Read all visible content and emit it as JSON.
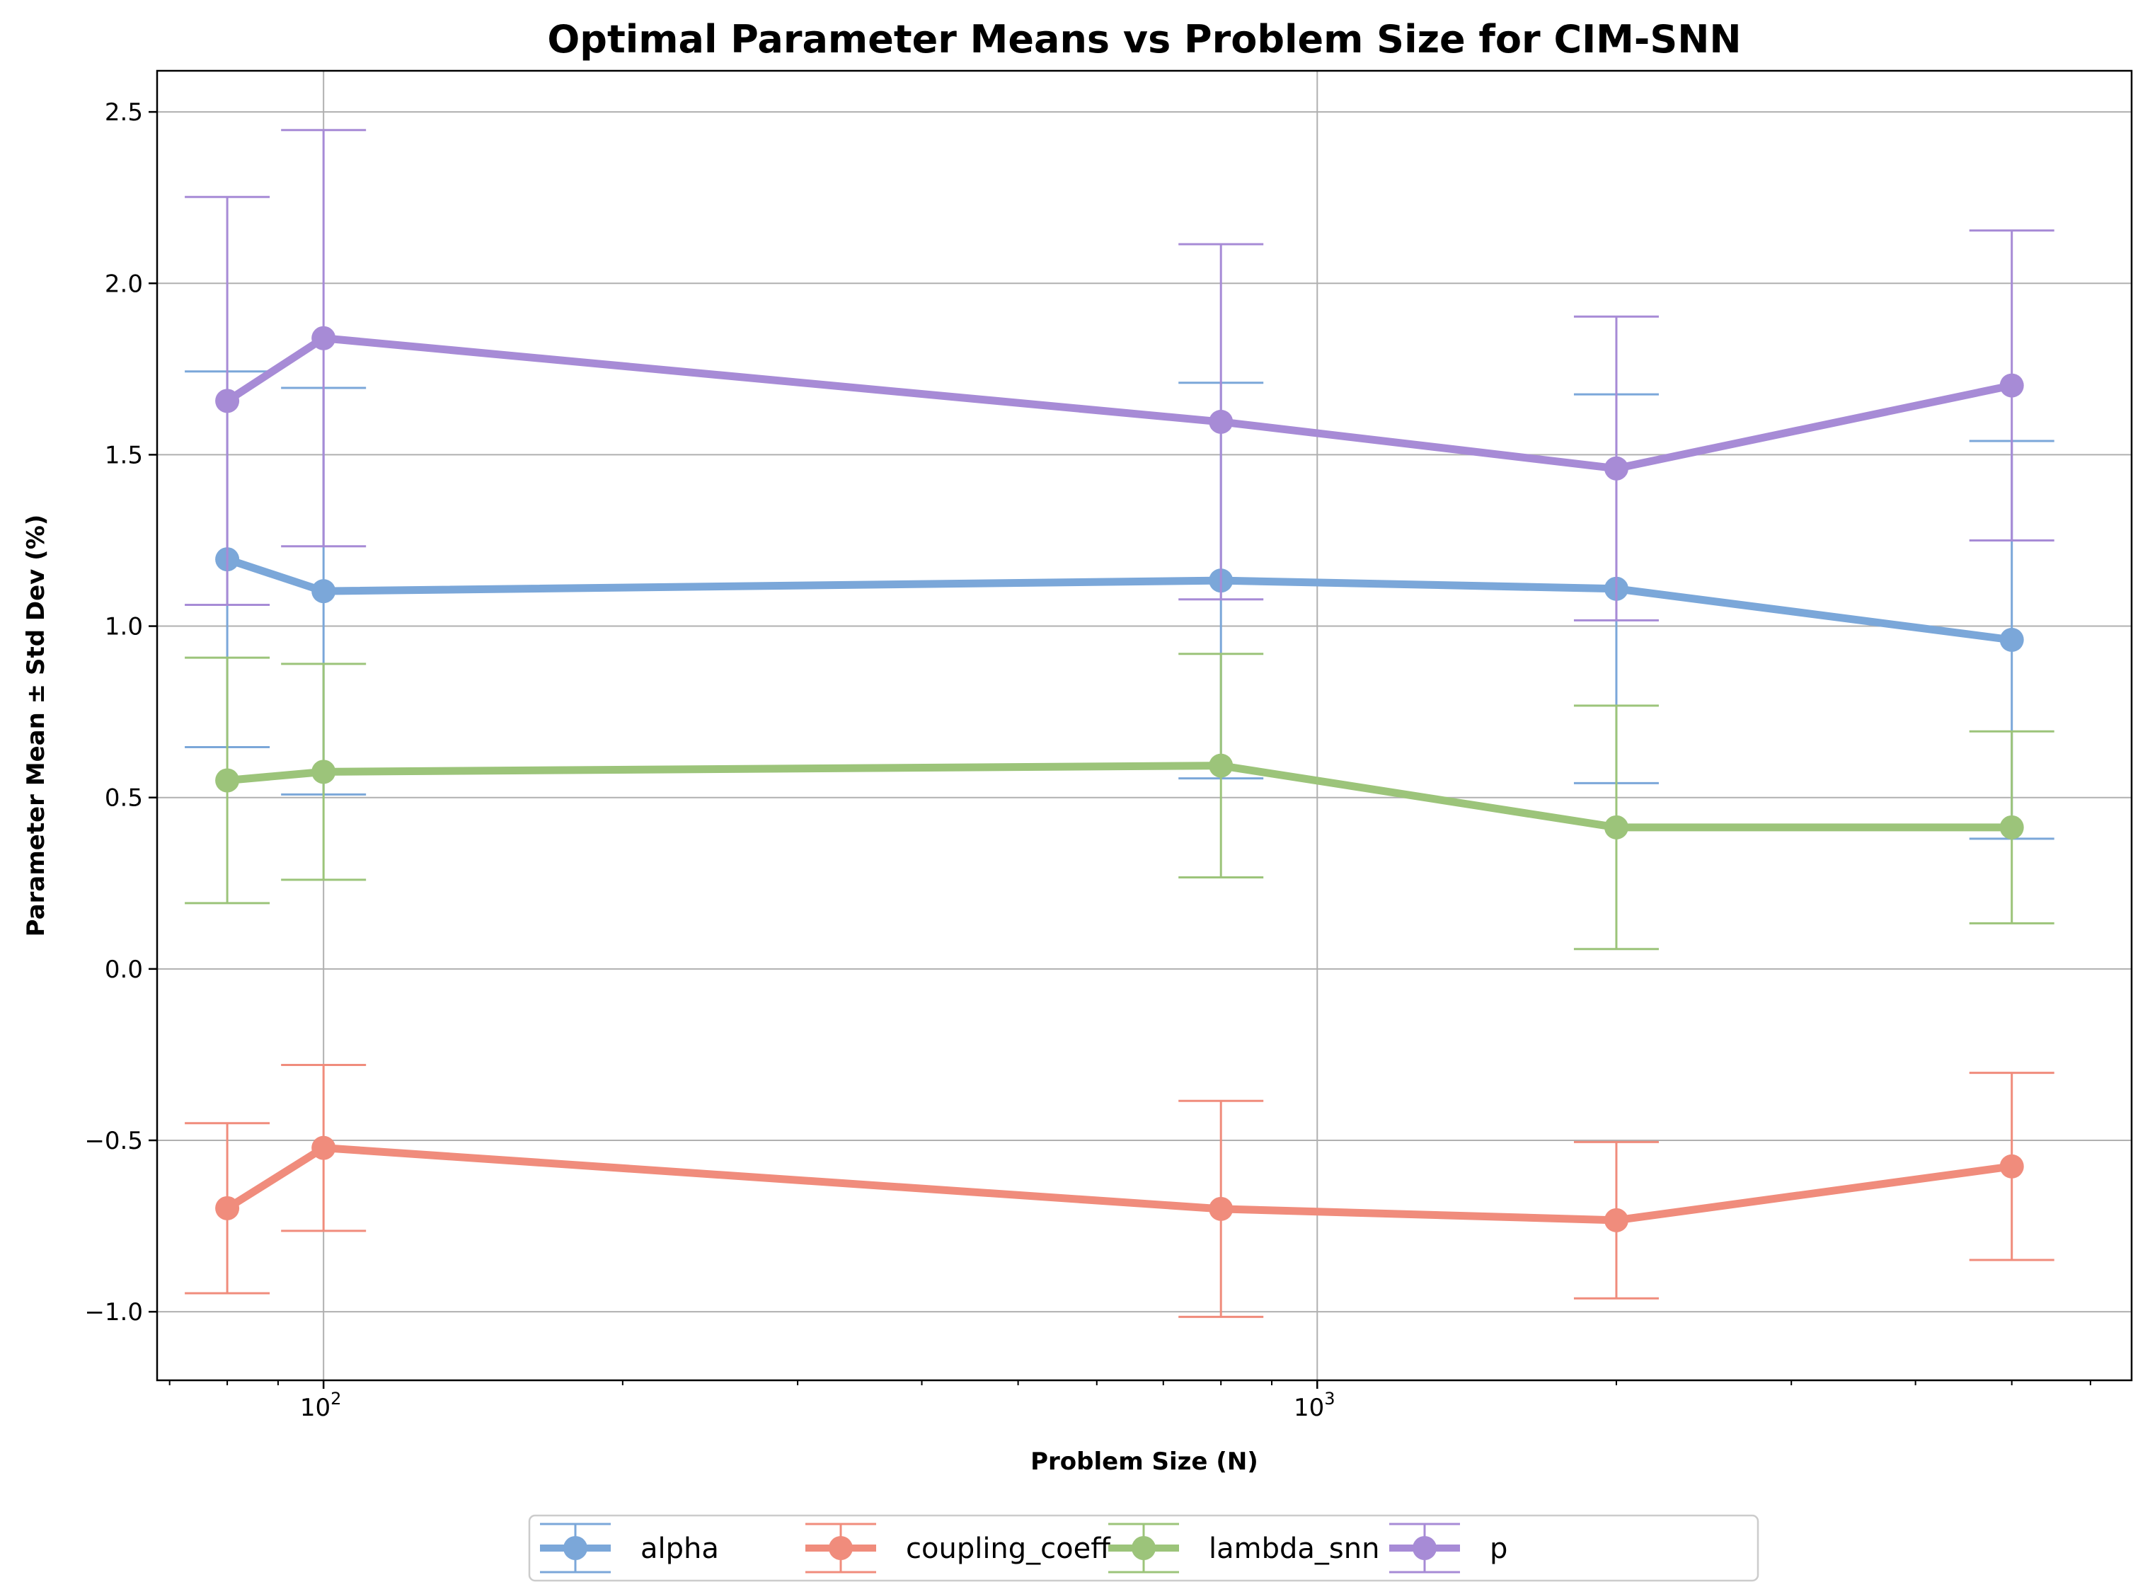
{
  "chart_data": {
    "type": "line",
    "title": "Optimal Parameter Means vs Problem Size for CIM-SNN",
    "xlabel": "Problem Size (N)",
    "ylabel": "Parameter Mean ± Std Dev (%)",
    "xscale": "log",
    "xlim": [
      68,
      6600
    ],
    "ylim": [
      -1.2,
      2.62
    ],
    "x": [
      80,
      100,
      800,
      2000,
      5000
    ],
    "xticks": [
      {
        "value": 100,
        "base": "10",
        "exp": "2"
      },
      {
        "value": 1000,
        "base": "10",
        "exp": "3"
      }
    ],
    "yticks": [
      {
        "value": 2.5,
        "label": "2.5"
      },
      {
        "value": 2.0,
        "label": "2.0"
      },
      {
        "value": 1.5,
        "label": "1.5"
      },
      {
        "value": 1.0,
        "label": "1.0"
      },
      {
        "value": 0.5,
        "label": "0.5"
      },
      {
        "value": 0.0,
        "label": "0.0"
      },
      {
        "value": -0.5,
        "label": "−0.5"
      },
      {
        "value": -1.0,
        "label": "−1.0"
      }
    ],
    "grid": true,
    "legend_position": "bottom-center",
    "series": [
      {
        "name": "alpha",
        "color": "#7BA7D9",
        "values": [
          1.195,
          1.102,
          1.133,
          1.109,
          0.96
        ],
        "std": [
          0.548,
          0.593,
          0.577,
          0.567,
          0.58
        ]
      },
      {
        "name": "coupling_coeff",
        "color": "#F08C7C",
        "values": [
          -0.698,
          -0.522,
          -0.7,
          -0.733,
          -0.576
        ],
        "std": [
          0.248,
          0.242,
          0.315,
          0.228,
          0.273
        ]
      },
      {
        "name": "lambda_snn",
        "color": "#9CC47A",
        "values": [
          0.55,
          0.575,
          0.593,
          0.413,
          0.413
        ],
        "std": [
          0.358,
          0.315,
          0.326,
          0.355,
          0.28
        ]
      },
      {
        "name": "p",
        "color": "#A78BD6",
        "values": [
          1.657,
          1.84,
          1.596,
          1.46,
          1.702
        ],
        "std": [
          0.595,
          0.607,
          0.518,
          0.443,
          0.452
        ]
      }
    ]
  }
}
